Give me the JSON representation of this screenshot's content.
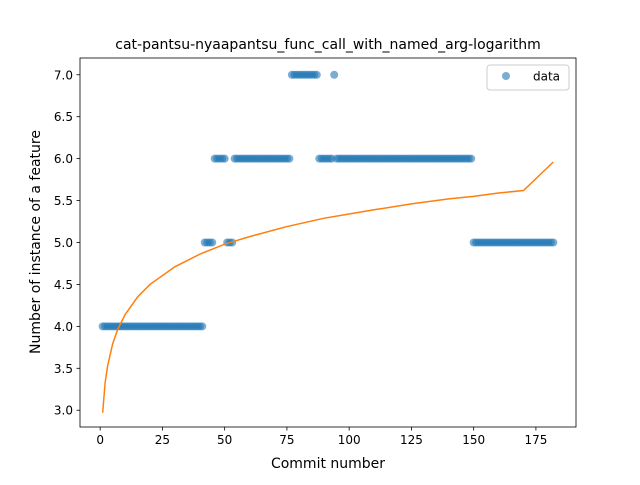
{
  "chart_data": {
    "type": "scatter",
    "title": "cat-pantsu-nyaapantsu_func_call_with_named_arg-logarithm",
    "xlabel": "Commit number",
    "ylabel": "Number of instance of a feature",
    "xlim": [
      -8.1,
      191.1
    ],
    "ylim": [
      2.8,
      7.2
    ],
    "xticks": [
      0,
      25,
      50,
      75,
      100,
      125,
      150,
      175
    ],
    "xtick_labels": [
      "0",
      "25",
      "50",
      "75",
      "100",
      "125",
      "150",
      "175"
    ],
    "yticks": [
      3.0,
      3.5,
      4.0,
      4.5,
      5.0,
      5.5,
      6.0,
      6.5,
      7.0
    ],
    "ytick_labels": [
      "3.0",
      "3.5",
      "4.0",
      "4.5",
      "5.0",
      "5.5",
      "6.0",
      "6.5",
      "7.0"
    ],
    "grid": false,
    "legend": {
      "placement": "top-right",
      "entries": [
        "data"
      ]
    },
    "colors": {
      "scatter": "#1f77b4",
      "fit": "#ff7f0e"
    },
    "series": [
      {
        "name": "data",
        "type": "scatter",
        "segments": [
          {
            "x_start": 1,
            "x_end": 41,
            "y": 4.0
          },
          {
            "x_start": 42,
            "x_end": 45,
            "y": 5.0
          },
          {
            "x_start": 46,
            "x_end": 50,
            "y": 6.0
          },
          {
            "x_start": 51,
            "x_end": 53,
            "y": 5.0
          },
          {
            "x_start": 54,
            "x_end": 76,
            "y": 6.0
          },
          {
            "x_start": 77,
            "x_end": 87,
            "y": 7.0
          },
          {
            "x_start": 88,
            "x_end": 93,
            "y": 6.0
          },
          {
            "x_start": 94,
            "x_end": 94,
            "y": 7.0
          },
          {
            "x_start": 95,
            "x_end": 149,
            "y": 6.0
          },
          {
            "x_start": 150,
            "x_end": 182,
            "y": 5.0
          }
        ]
      },
      {
        "type": "line",
        "fit": "logarithmic",
        "x": [
          1,
          2,
          3,
          5,
          7,
          10,
          15,
          20,
          30,
          40,
          50,
          60,
          75,
          90,
          100,
          110,
          125,
          140,
          150,
          160,
          170,
          182
        ],
        "y": [
          2.97,
          3.33,
          3.53,
          3.79,
          3.96,
          4.14,
          4.35,
          4.5,
          4.71,
          4.86,
          4.98,
          5.07,
          5.19,
          5.29,
          5.34,
          5.39,
          5.46,
          5.52,
          5.55,
          5.59,
          5.62,
          5.96
        ]
      }
    ]
  }
}
